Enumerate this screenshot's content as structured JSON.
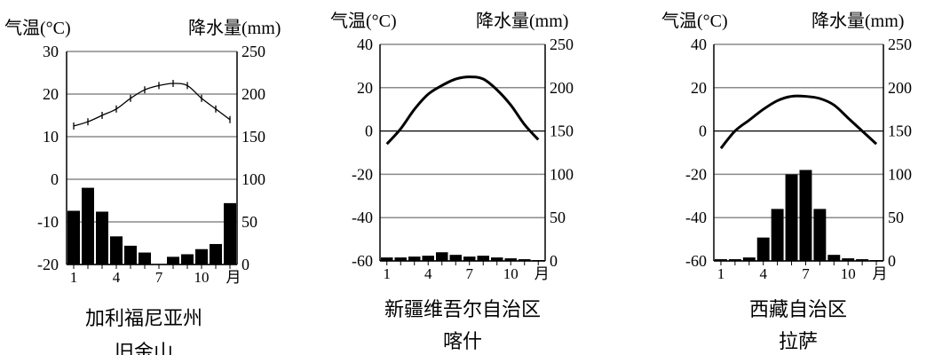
{
  "chart_data": [
    {
      "type": "bar+line",
      "ylabel_left": "气温(°C)",
      "ylabel_right": "降水量(mm)",
      "left_ticks": [
        "30",
        "20",
        "10",
        "0",
        "-10",
        "-20"
      ],
      "right_ticks": [
        "250",
        "200",
        "150",
        "100",
        "50",
        "0"
      ],
      "x_ticks": [
        "1",
        "4",
        "7",
        "10"
      ],
      "x_unit": "月",
      "temp_range": [
        -20,
        30
      ],
      "precip_range": [
        0,
        250
      ],
      "months": [
        1,
        2,
        3,
        4,
        5,
        6,
        7,
        8,
        9,
        10,
        11,
        12
      ],
      "temperature": [
        12.5,
        13.5,
        15,
        16.5,
        19,
        21,
        22,
        22.5,
        22,
        19,
        16.5,
        14
      ],
      "precipitation": [
        63,
        90,
        62,
        33,
        22,
        14,
        0,
        9,
        12,
        18,
        24,
        72
      ],
      "caption_lines": [
        "加利福尼亚州",
        "旧金山"
      ]
    },
    {
      "type": "bar+line",
      "ylabel_left": "气温(°C)",
      "ylabel_right": "降水量(mm)",
      "left_ticks": [
        "40",
        "20",
        "0",
        "-20",
        "-40",
        "-60"
      ],
      "right_ticks": [
        "250",
        "200",
        "150",
        "100",
        "50",
        "0"
      ],
      "x_ticks": [
        "1",
        "4",
        "7",
        "10"
      ],
      "x_unit": "月",
      "temp_range": [
        -60,
        40
      ],
      "precip_range": [
        0,
        250
      ],
      "months": [
        1,
        2,
        3,
        4,
        5,
        6,
        7,
        8,
        9,
        10,
        11,
        12
      ],
      "temperature": [
        -6,
        1,
        10,
        17,
        21,
        24,
        25,
        24,
        19,
        12,
        3,
        -4
      ],
      "precipitation": [
        4,
        4,
        5,
        6,
        10,
        7,
        5,
        6,
        4,
        3,
        2,
        1
      ],
      "caption_lines": [
        "新疆维吾尔自治区",
        "喀什"
      ]
    },
    {
      "type": "bar+line",
      "ylabel_left": "气温(°C)",
      "ylabel_right": "降水量(mm)",
      "left_ticks": [
        "40",
        "20",
        "0",
        "-20",
        "-40",
        "-60"
      ],
      "right_ticks": [
        "250",
        "200",
        "150",
        "100",
        "50",
        "0"
      ],
      "x_ticks": [
        "1",
        "4",
        "7",
        "10"
      ],
      "x_unit": "月",
      "temp_range": [
        -60,
        40
      ],
      "precip_range": [
        0,
        250
      ],
      "months": [
        1,
        2,
        3,
        4,
        5,
        6,
        7,
        8,
        9,
        10,
        11,
        12
      ],
      "temperature": [
        -8,
        0,
        5,
        10,
        14,
        16,
        16,
        15,
        12,
        6,
        0,
        -6
      ],
      "precipitation": [
        2,
        2,
        4,
        27,
        60,
        100,
        105,
        60,
        7,
        3,
        2,
        1
      ],
      "caption_lines": [
        "西藏自治区",
        "拉萨"
      ]
    }
  ]
}
